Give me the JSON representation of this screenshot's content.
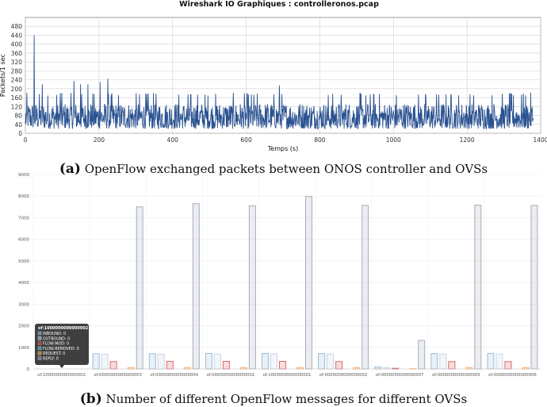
{
  "captions": {
    "a_label": "(a)",
    "a_text": "OpenFlow exchanged packets between ONOS controller and OVSs",
    "b_label": "(b)",
    "b_text": "Number of different OpenFlow messages for different OVSs"
  },
  "chart_data": [
    {
      "type": "line",
      "title": "Wireshark IO Graphiques : controlleronos.pcap",
      "xlabel": "Temps (s)",
      "ylabel": "Packets/1 sec",
      "xlim": [
        0,
        1400
      ],
      "ylim": [
        0,
        520
      ],
      "xticks": [
        0,
        200,
        400,
        600,
        800,
        1000,
        1200,
        1400
      ],
      "yticks": [
        0,
        40,
        80,
        120,
        160,
        200,
        240,
        280,
        320,
        360,
        400,
        440,
        480
      ],
      "grid": true,
      "color": "#2a5291",
      "series": [
        {
          "values_description_note": "",
          "peaks": [
            {
              "x": 0,
              "y": 40
            },
            {
              "x": 24,
              "y": 440
            },
            {
              "x": 40,
              "y": 100
            },
            {
              "x": 46,
              "y": 220
            },
            {
              "x": 95,
              "y": 180
            },
            {
              "x": 132,
              "y": 235
            },
            {
              "x": 150,
              "y": 220
            },
            {
              "x": 170,
              "y": 220
            },
            {
              "x": 203,
              "y": 230
            },
            {
              "x": 224,
              "y": 245
            },
            {
              "x": 690,
              "y": 215
            },
            {
              "x": 1380,
              "y": 60
            }
          ],
          "typical_range": [
            20,
            140
          ],
          "mean": 75,
          "n_points": 1380
        }
      ]
    },
    {
      "type": "bar",
      "title": "",
      "ylim": [
        0,
        9000
      ],
      "yticks": [
        0,
        1000,
        2000,
        3000,
        4000,
        5000,
        6000,
        7000,
        8000,
        9000
      ],
      "grid": true,
      "categories": [
        "of:1000000000000002",
        "of:0000000000000003",
        "of:0000000000000004",
        "of:0000000000000001",
        "of:1000000000000001",
        "of:0000000000000002",
        "of:0000000000000007",
        "of:0000000000000005",
        "of:0000000000000006"
      ],
      "series": [
        {
          "name": "INBOUND",
          "color": "#9bbbd8",
          "values": [
            0,
            700,
            700,
            720,
            720,
            710,
            90,
            710,
            720
          ]
        },
        {
          "name": "OUTBOUND",
          "color": "#c9d6e3",
          "values": [
            0,
            680,
            680,
            690,
            700,
            690,
            60,
            690,
            690
          ]
        },
        {
          "name": "FLOW-MOD",
          "color": "#e06666",
          "values": [
            0,
            340,
            350,
            350,
            350,
            340,
            30,
            340,
            340
          ]
        },
        {
          "name": "FLOW-REMOVED",
          "color": "#7ec8e3",
          "values": [
            0,
            0,
            0,
            0,
            0,
            0,
            0,
            0,
            0
          ]
        },
        {
          "name": "REQUEST",
          "color": "#f6b26b",
          "values": [
            0,
            60,
            60,
            60,
            60,
            60,
            10,
            60,
            60
          ]
        },
        {
          "name": "REPLY",
          "color": "#a4adbb",
          "values": [
            0,
            7500,
            7650,
            7550,
            7980,
            7570,
            1320,
            7580,
            7570
          ]
        }
      ],
      "tooltip": {
        "title": "of:1000000000000002",
        "lines": [
          "INBOUND: 0",
          "OUTBOUND: 0",
          "FLOW-MOD: 0",
          "FLOW-REMOVED: 0",
          "REQUEST: 0",
          "REPLY: 0"
        ],
        "colors": [
          "#9bbbd8",
          "#c9d6e3",
          "#e06666",
          "#7ec8e3",
          "#f6b26b",
          "#a4adbb"
        ]
      }
    }
  ]
}
